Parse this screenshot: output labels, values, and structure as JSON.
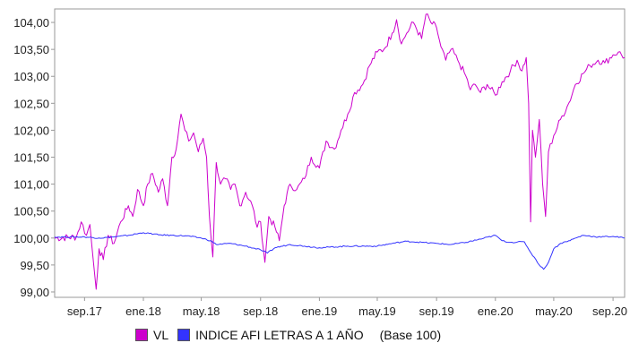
{
  "chart_data": {
    "type": "line",
    "title": "",
    "xlabel": "",
    "ylabel": "",
    "x_ticks": [
      "sep.17",
      "ene.18",
      "may.18",
      "sep.18",
      "ene.19",
      "may.19",
      "sep.19",
      "ene.20",
      "may.20",
      "sep.20"
    ],
    "y_ticks": [
      "99,00",
      "99,50",
      "100,00",
      "100,50",
      "101,00",
      "101,50",
      "102,00",
      "102,50",
      "103,00",
      "103,50",
      "104,00"
    ],
    "xlim": [
      "2017-07-01",
      "2020-09-25"
    ],
    "ylim": [
      98.9,
      104.25
    ],
    "grid": false,
    "legend_position": "bottom",
    "legend_note": "(Base 100)",
    "series": [
      {
        "name": "VL",
        "color": "#cc00cc",
        "points": [
          [
            "2017-07-01",
            100.0
          ],
          [
            "2017-08-15",
            100.02
          ],
          [
            "2017-08-25",
            100.3
          ],
          [
            "2017-09-05",
            100.05
          ],
          [
            "2017-09-12",
            100.25
          ],
          [
            "2017-09-20",
            99.5
          ],
          [
            "2017-09-25",
            99.05
          ],
          [
            "2017-10-01",
            99.8
          ],
          [
            "2017-10-10",
            99.6
          ],
          [
            "2017-10-20",
            100.05
          ],
          [
            "2017-11-01",
            99.9
          ],
          [
            "2017-11-15",
            100.3
          ],
          [
            "2017-12-01",
            100.6
          ],
          [
            "2017-12-10",
            100.4
          ],
          [
            "2017-12-20",
            100.9
          ],
          [
            "2018-01-01",
            100.6
          ],
          [
            "2018-01-10",
            101.0
          ],
          [
            "2018-01-20",
            101.2
          ],
          [
            "2018-02-01",
            100.85
          ],
          [
            "2018-02-10",
            101.1
          ],
          [
            "2018-02-20",
            100.6
          ],
          [
            "2018-03-01",
            101.5
          ],
          [
            "2018-03-10",
            101.65
          ],
          [
            "2018-03-20",
            102.3
          ],
          [
            "2018-03-28",
            102.0
          ],
          [
            "2018-04-05",
            101.8
          ],
          [
            "2018-04-15",
            101.95
          ],
          [
            "2018-04-25",
            101.6
          ],
          [
            "2018-05-05",
            101.85
          ],
          [
            "2018-05-12",
            101.5
          ],
          [
            "2018-05-18",
            100.4
          ],
          [
            "2018-05-25",
            99.65
          ],
          [
            "2018-06-01",
            101.4
          ],
          [
            "2018-06-10",
            101.0
          ],
          [
            "2018-06-20",
            101.1
          ],
          [
            "2018-07-01",
            100.9
          ],
          [
            "2018-07-10",
            101.0
          ],
          [
            "2018-07-20",
            100.6
          ],
          [
            "2018-08-01",
            100.85
          ],
          [
            "2018-08-15",
            100.6
          ],
          [
            "2018-08-25",
            100.2
          ],
          [
            "2018-09-01",
            100.3
          ],
          [
            "2018-09-10",
            99.55
          ],
          [
            "2018-09-18",
            100.4
          ],
          [
            "2018-10-01",
            100.2
          ],
          [
            "2018-10-10",
            99.95
          ],
          [
            "2018-10-20",
            100.6
          ],
          [
            "2018-11-01",
            101.0
          ],
          [
            "2018-11-15",
            100.9
          ],
          [
            "2018-12-01",
            101.1
          ],
          [
            "2018-12-15",
            101.5
          ],
          [
            "2019-01-01",
            101.3
          ],
          [
            "2019-01-15",
            101.8
          ],
          [
            "2019-02-01",
            101.65
          ],
          [
            "2019-02-15",
            102.0
          ],
          [
            "2019-03-01",
            102.3
          ],
          [
            "2019-03-15",
            102.7
          ],
          [
            "2019-04-01",
            102.85
          ],
          [
            "2019-04-15",
            103.2
          ],
          [
            "2019-05-01",
            103.45
          ],
          [
            "2019-05-15",
            103.5
          ],
          [
            "2019-06-01",
            103.8
          ],
          [
            "2019-06-10",
            104.05
          ],
          [
            "2019-06-20",
            103.6
          ],
          [
            "2019-07-01",
            103.8
          ],
          [
            "2019-07-15",
            104.0
          ],
          [
            "2019-08-01",
            103.7
          ],
          [
            "2019-08-10",
            104.15
          ],
          [
            "2019-08-20",
            104.0
          ],
          [
            "2019-09-01",
            103.9
          ],
          [
            "2019-09-10",
            103.55
          ],
          [
            "2019-09-20",
            103.3
          ],
          [
            "2019-10-01",
            103.5
          ],
          [
            "2019-10-15",
            103.3
          ],
          [
            "2019-11-01",
            103.0
          ],
          [
            "2019-11-10",
            102.75
          ],
          [
            "2019-11-20",
            102.85
          ],
          [
            "2019-12-01",
            102.7
          ],
          [
            "2019-12-15",
            102.85
          ],
          [
            "2020-01-01",
            102.65
          ],
          [
            "2020-01-15",
            102.9
          ],
          [
            "2020-02-01",
            103.1
          ],
          [
            "2020-02-15",
            103.3
          ],
          [
            "2020-02-25",
            103.1
          ],
          [
            "2020-03-05",
            103.35
          ],
          [
            "2020-03-10",
            102.5
          ],
          [
            "2020-03-14",
            100.3
          ],
          [
            "2020-03-18",
            102.0
          ],
          [
            "2020-03-24",
            101.5
          ],
          [
            "2020-04-01",
            102.2
          ],
          [
            "2020-04-08",
            101.0
          ],
          [
            "2020-04-14",
            100.4
          ],
          [
            "2020-04-20",
            101.6
          ],
          [
            "2020-05-01",
            101.9
          ],
          [
            "2020-05-15",
            102.2
          ],
          [
            "2020-06-01",
            102.5
          ],
          [
            "2020-06-15",
            102.85
          ],
          [
            "2020-07-01",
            103.05
          ],
          [
            "2020-07-15",
            103.2
          ],
          [
            "2020-08-01",
            103.3
          ],
          [
            "2020-08-15",
            103.25
          ],
          [
            "2020-09-01",
            103.4
          ],
          [
            "2020-09-12",
            103.45
          ],
          [
            "2020-09-25",
            103.35
          ]
        ]
      },
      {
        "name": "INDICE AFI LETRAS A 1 AÑO",
        "color": "#3333ff",
        "points": [
          [
            "2017-07-01",
            100.02
          ],
          [
            "2017-09-01",
            100.02
          ],
          [
            "2017-10-01",
            100.0
          ],
          [
            "2017-11-01",
            100.02
          ],
          [
            "2017-12-01",
            100.05
          ],
          [
            "2018-01-01",
            100.1
          ],
          [
            "2018-02-01",
            100.06
          ],
          [
            "2018-03-01",
            100.05
          ],
          [
            "2018-04-01",
            100.04
          ],
          [
            "2018-05-01",
            100.0
          ],
          [
            "2018-05-20",
            99.95
          ],
          [
            "2018-06-01",
            99.88
          ],
          [
            "2018-07-01",
            99.9
          ],
          [
            "2018-08-01",
            99.85
          ],
          [
            "2018-09-01",
            99.78
          ],
          [
            "2018-09-15",
            99.72
          ],
          [
            "2018-10-01",
            99.82
          ],
          [
            "2018-11-01",
            99.88
          ],
          [
            "2018-12-01",
            99.85
          ],
          [
            "2019-01-01",
            99.82
          ],
          [
            "2019-03-01",
            99.85
          ],
          [
            "2019-05-01",
            99.85
          ],
          [
            "2019-06-01",
            99.9
          ],
          [
            "2019-07-01",
            99.94
          ],
          [
            "2019-08-01",
            99.92
          ],
          [
            "2019-09-01",
            99.9
          ],
          [
            "2019-10-01",
            99.88
          ],
          [
            "2019-11-01",
            99.92
          ],
          [
            "2019-12-01",
            99.98
          ],
          [
            "2020-01-01",
            100.05
          ],
          [
            "2020-01-15",
            99.95
          ],
          [
            "2020-02-01",
            99.92
          ],
          [
            "2020-03-01",
            99.93
          ],
          [
            "2020-03-15",
            99.72
          ],
          [
            "2020-03-25",
            99.6
          ],
          [
            "2020-04-01",
            99.5
          ],
          [
            "2020-04-10",
            99.42
          ],
          [
            "2020-04-20",
            99.55
          ],
          [
            "2020-05-01",
            99.8
          ],
          [
            "2020-05-15",
            99.9
          ],
          [
            "2020-06-01",
            99.95
          ],
          [
            "2020-07-01",
            100.05
          ],
          [
            "2020-08-01",
            100.02
          ],
          [
            "2020-09-01",
            100.03
          ],
          [
            "2020-09-25",
            100.0
          ]
        ]
      }
    ]
  }
}
